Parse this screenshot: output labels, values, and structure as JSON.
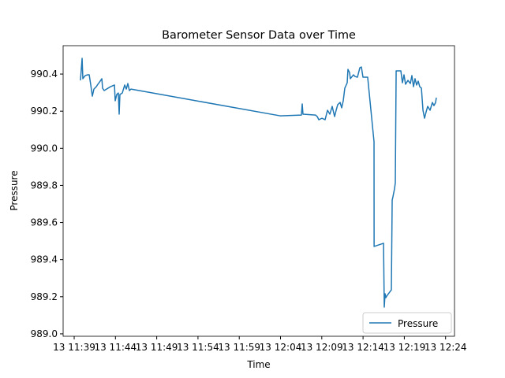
{
  "chart_data": {
    "type": "line",
    "title": "Barometer Sensor Data over Time",
    "x_label": "Time",
    "y_label": "Pressure",
    "x": [
      699.76,
      699.96,
      700.05,
      700.34,
      700.63,
      700.82,
      701.01,
      701.2,
      701.39,
      701.68,
      701.87,
      702.15,
      702.35,
      702.44,
      702.63,
      703.4,
      703.88,
      703.97,
      704.16,
      704.35,
      704.45,
      704.54,
      704.83,
      705.12,
      705.31,
      705.5,
      705.69,
      705.88,
      723.95,
      726.53,
      726.63,
      726.72,
      728.25,
      728.45,
      728.64,
      729.02,
      729.4,
      729.69,
      729.98,
      730.26,
      730.55,
      730.74,
      730.93,
      731.22,
      731.41,
      731.6,
      731.79,
      732.08,
      732.17,
      732.37,
      732.46,
      732.84,
      733.03,
      733.32,
      733.61,
      733.8,
      733.99,
      734.56,
      735.33,
      735.34,
      736.48,
      736.57,
      736.67,
      736.76,
      736.86,
      737.43,
      737.53,
      737.62,
      737.81,
      737.91,
      738.01,
      738.58,
      738.77,
      738.96,
      739.15,
      739.44,
      739.73,
      739.92,
      740.11,
      740.3,
      740.49,
      740.68,
      740.87,
      741.07,
      741.26,
      741.45,
      741.64,
      741.83,
      742.12,
      742.4,
      742.59,
      742.79,
      742.88
    ],
    "series": [
      {
        "name": "Pressure",
        "color": "#1f77b4",
        "values": [
          990.366,
          990.485,
          990.375,
          990.392,
          990.396,
          990.396,
          990.341,
          990.281,
          990.319,
          990.332,
          990.345,
          990.362,
          990.375,
          990.324,
          990.311,
          990.332,
          990.341,
          990.256,
          990.29,
          990.298,
          990.184,
          990.29,
          990.298,
          990.341,
          990.319,
          990.349,
          990.311,
          990.319,
          990.175,
          990.179,
          990.239,
          990.184,
          990.179,
          990.171,
          990.154,
          990.162,
          990.154,
          990.205,
          990.184,
          990.226,
          990.171,
          990.205,
          990.235,
          990.247,
          990.218,
          990.256,
          990.324,
          990.353,
          990.425,
          990.408,
          990.375,
          990.396,
          990.387,
          990.383,
          990.434,
          990.438,
          990.383,
          990.383,
          990.035,
          989.471,
          989.488,
          989.144,
          989.216,
          989.195,
          989.203,
          989.237,
          989.721,
          989.738,
          989.781,
          989.814,
          990.417,
          990.417,
          990.353,
          990.396,
          990.345,
          990.366,
          990.349,
          990.392,
          990.332,
          990.375,
          990.341,
          990.362,
          990.332,
          990.324,
          990.205,
          990.162,
          990.196,
          990.226,
          990.205,
          990.247,
          990.23,
          990.247,
          990.273
        ]
      }
    ],
    "xlim": [
      697.66,
      745.08
    ],
    "ylim": [
      988.987,
      990.553
    ],
    "xticks": [
      {
        "value": 699,
        "label": "13 11:39"
      },
      {
        "value": 704,
        "label": "13 11:44"
      },
      {
        "value": 709,
        "label": "13 11:49"
      },
      {
        "value": 714,
        "label": "13 11:54"
      },
      {
        "value": 719,
        "label": "13 11:59"
      },
      {
        "value": 724,
        "label": "13 12:04"
      },
      {
        "value": 729,
        "label": "13 12:09"
      },
      {
        "value": 734,
        "label": "13 12:14"
      },
      {
        "value": 739,
        "label": "13 12:19"
      },
      {
        "value": 744,
        "label": "13 12:24"
      }
    ],
    "yticks": [
      {
        "value": 989,
        "label": "989.0"
      },
      989.2,
      989.4,
      989.6,
      989.8,
      {
        "value": 990,
        "label": "990.0"
      },
      990.2,
      990.4
    ],
    "legend": "lower right",
    "grid": false
  }
}
